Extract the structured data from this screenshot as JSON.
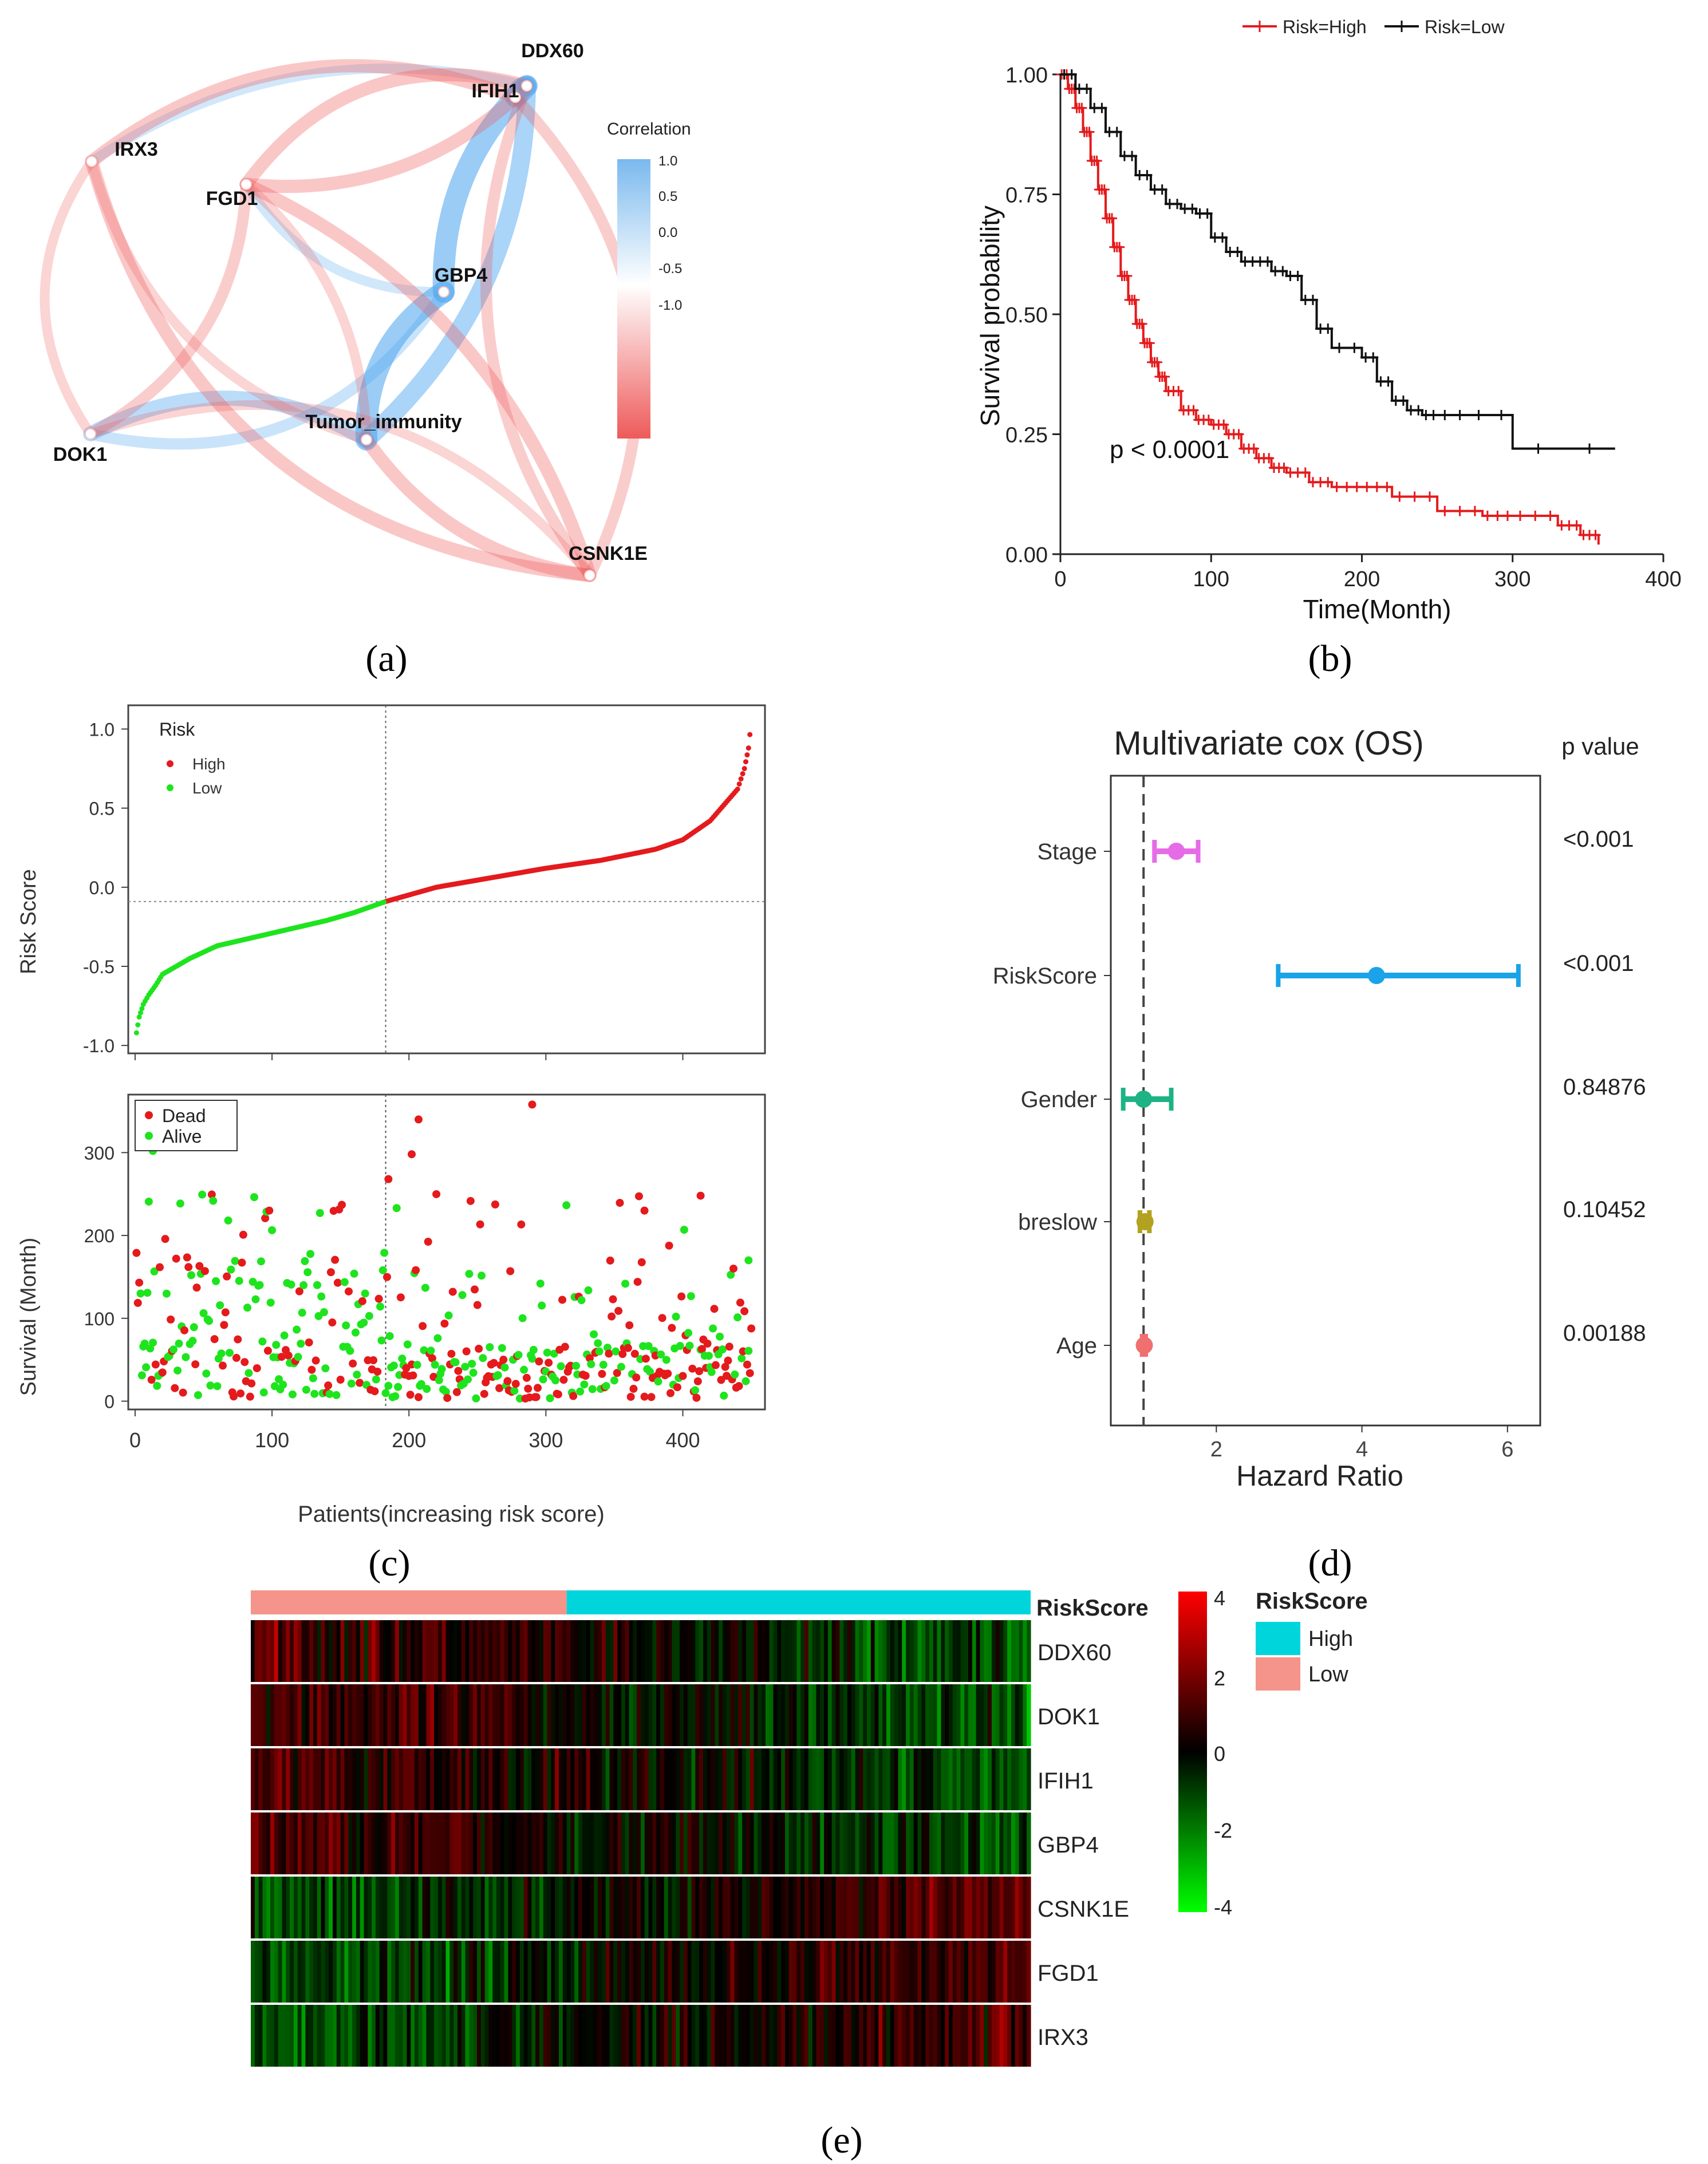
{
  "panel_labels": {
    "a": "(a)",
    "b": "(b)",
    "c": "(c)",
    "d": "(d)",
    "e": "(e)"
  },
  "chart_data": [
    {
      "panel": "a",
      "type": "network",
      "legend_title": "Correlation",
      "colorbar_ticks": [
        "1.0",
        "0.5",
        "0.0",
        "-0.5",
        "-1.0"
      ],
      "colors": {
        "positive": "#4da6f0",
        "negative": "#f05a5a"
      },
      "nodes": [
        "DDX60",
        "IFIH1",
        "IRX3",
        "FGD1",
        "GBP4",
        "Tumor_immunity",
        "DOK1",
        "CSNK1E"
      ],
      "edges": [
        {
          "source": "GBP4",
          "target": "DDX60",
          "sign": "positive",
          "strength": 1.0
        },
        {
          "source": "GBP4",
          "target": "Tumor_immunity",
          "sign": "positive",
          "strength": 1.0
        },
        {
          "source": "IFIH1",
          "target": "DDX60",
          "sign": "positive",
          "strength": 0.9
        },
        {
          "source": "Tumor_immunity",
          "target": "DDX60",
          "sign": "positive",
          "strength": 0.8
        },
        {
          "source": "DOK1",
          "target": "Tumor_immunity",
          "sign": "positive",
          "strength": 0.6
        },
        {
          "source": "DOK1",
          "target": "GBP4",
          "sign": "positive",
          "strength": 0.4
        },
        {
          "source": "IRX3",
          "target": "DDX60",
          "sign": "positive",
          "strength": 0.3
        },
        {
          "source": "FGD1",
          "target": "GBP4",
          "sign": "positive",
          "strength": 0.3
        },
        {
          "source": "FGD1",
          "target": "DDX60",
          "sign": "negative",
          "strength": 0.5
        },
        {
          "source": "FGD1",
          "target": "IFIH1",
          "sign": "negative",
          "strength": 0.5
        },
        {
          "source": "IRX3",
          "target": "IFIH1",
          "sign": "negative",
          "strength": 0.5
        },
        {
          "source": "IRX3",
          "target": "CSNK1E",
          "sign": "negative",
          "strength": 0.5
        },
        {
          "source": "FGD1",
          "target": "CSNK1E",
          "sign": "negative",
          "strength": 0.5
        },
        {
          "source": "DOK1",
          "target": "FGD1",
          "sign": "negative",
          "strength": 0.4
        },
        {
          "source": "DOK1",
          "target": "IRX3",
          "sign": "negative",
          "strength": 0.3
        },
        {
          "source": "Tumor_immunity",
          "target": "CSNK1E",
          "sign": "negative",
          "strength": 0.5
        },
        {
          "source": "CSNK1E",
          "target": "DDX60",
          "sign": "negative",
          "strength": 0.4
        },
        {
          "source": "CSNK1E",
          "target": "IFIH1",
          "sign": "negative",
          "strength": 0.4
        },
        {
          "source": "FGD1",
          "target": "Tumor_immunity",
          "sign": "negative",
          "strength": 0.3
        },
        {
          "source": "IRX3",
          "target": "Tumor_immunity",
          "sign": "negative",
          "strength": 0.3
        },
        {
          "source": "DOK1",
          "target": "CSNK1E",
          "sign": "negative",
          "strength": 0.3
        }
      ]
    },
    {
      "panel": "b",
      "type": "line",
      "subtype": "kaplan-meier",
      "xlabel": "Time(Month)",
      "ylabel": "Survival probability",
      "xlim": [
        0,
        400
      ],
      "ylim": [
        0,
        1
      ],
      "xticks": [
        0,
        100,
        200,
        300,
        400
      ],
      "yticks": [
        0.0,
        0.25,
        0.5,
        0.75,
        1.0
      ],
      "ytick_labels": [
        "0.00",
        "0.25",
        "0.50",
        "0.75",
        "1.00"
      ],
      "legend_position": "top",
      "annotation": "p < 0.0001",
      "series": [
        {
          "name": "Risk=High",
          "color": "#e41a1c",
          "x": [
            0,
            5,
            10,
            15,
            20,
            25,
            30,
            35,
            40,
            45,
            50,
            55,
            60,
            65,
            70,
            80,
            90,
            100,
            110,
            120,
            130,
            140,
            150,
            165,
            180,
            200,
            220,
            250,
            280,
            300,
            330,
            345,
            357
          ],
          "y": [
            1.0,
            0.97,
            0.93,
            0.88,
            0.82,
            0.76,
            0.7,
            0.64,
            0.58,
            0.53,
            0.48,
            0.44,
            0.4,
            0.37,
            0.34,
            0.3,
            0.28,
            0.27,
            0.25,
            0.22,
            0.2,
            0.18,
            0.17,
            0.15,
            0.14,
            0.14,
            0.12,
            0.09,
            0.08,
            0.08,
            0.06,
            0.04,
            0.02
          ]
        },
        {
          "name": "Risk=Low",
          "color": "#111111",
          "x": [
            0,
            10,
            20,
            30,
            40,
            50,
            60,
            70,
            80,
            90,
            100,
            110,
            120,
            130,
            140,
            150,
            160,
            170,
            180,
            200,
            210,
            220,
            230,
            240,
            250,
            270,
            300,
            368
          ],
          "y": [
            1.0,
            0.97,
            0.93,
            0.88,
            0.83,
            0.79,
            0.76,
            0.73,
            0.72,
            0.71,
            0.66,
            0.63,
            0.61,
            0.61,
            0.59,
            0.58,
            0.53,
            0.47,
            0.43,
            0.41,
            0.36,
            0.32,
            0.3,
            0.29,
            0.29,
            0.29,
            0.22,
            0.22
          ]
        }
      ]
    },
    {
      "panel": "c-top",
      "type": "scatter",
      "ylabel": "Risk Score",
      "xlim": [
        -5,
        460
      ],
      "ylim": [
        -1.05,
        1.15
      ],
      "yticks": [
        -1.0,
        -0.5,
        0.0,
        0.5,
        1.0
      ],
      "ytick_labels": [
        "-1.0",
        "-0.5",
        "0.0",
        "0.5",
        "1.0"
      ],
      "cutoff_x": 183,
      "cutoff_y": -0.09,
      "legend_title": "Risk",
      "legend_position": "top-left",
      "series": [
        {
          "name": "High",
          "color": "#e41a1c",
          "x": [
            183,
            220,
            260,
            300,
            340,
            380,
            400,
            420,
            430,
            440,
            445,
            448,
            450
          ],
          "y": [
            -0.09,
            0.0,
            0.06,
            0.12,
            0.17,
            0.24,
            0.3,
            0.42,
            0.52,
            0.62,
            0.75,
            0.88,
            1.05
          ]
        },
        {
          "name": "Low",
          "color": "#1ee41e",
          "x": [
            1,
            3,
            6,
            10,
            15,
            20,
            30,
            40,
            50,
            60,
            80,
            100,
            120,
            140,
            160,
            183
          ],
          "y": [
            -0.92,
            -0.82,
            -0.74,
            -0.68,
            -0.62,
            -0.55,
            -0.5,
            -0.45,
            -0.41,
            -0.37,
            -0.33,
            -0.29,
            -0.25,
            -0.21,
            -0.16,
            -0.09
          ]
        }
      ]
    },
    {
      "panel": "c-bottom",
      "type": "scatter",
      "xlabel": "Patients(increasing risk score)",
      "ylabel": "Survival (Month)",
      "xlim": [
        -5,
        460
      ],
      "ylim": [
        -10,
        370
      ],
      "xticks": [
        0,
        100,
        200,
        300,
        400
      ],
      "yticks": [
        0,
        100,
        200,
        300
      ],
      "cutoff_x": 183,
      "legend_position": "top-left",
      "series": [
        {
          "name": "Dead",
          "color": "#e41a1c"
        },
        {
          "name": "Alive",
          "color": "#1ee41e"
        }
      ]
    },
    {
      "panel": "d",
      "type": "forest",
      "title": "Multivariate cox (OS)",
      "xlabel": "Hazard Ratio",
      "pvalue_header": "p value",
      "xlim": [
        0.55,
        6.45
      ],
      "xticks": [
        2,
        4,
        6
      ],
      "reference_x": 1,
      "variables": [
        {
          "name": "Stage",
          "hr": 1.45,
          "lower": 1.15,
          "upper": 1.75,
          "p": "<0.001",
          "color": "#e66be6"
        },
        {
          "name": "RiskScore",
          "hr": 4.2,
          "lower": 2.85,
          "upper": 6.15,
          "p": "<0.001",
          "color": "#1aa3e8"
        },
        {
          "name": "Gender",
          "hr": 1.0,
          "lower": 0.72,
          "upper": 1.38,
          "p": "0.84876",
          "color": "#1db385"
        },
        {
          "name": "breslow",
          "hr": 1.02,
          "lower": 0.95,
          "upper": 1.08,
          "p": "0.10452",
          "color": "#b3a21f"
        },
        {
          "name": "Age",
          "hr": 1.01,
          "lower": 0.98,
          "upper": 1.03,
          "p": "0.00188",
          "color": "#f07070"
        }
      ]
    },
    {
      "panel": "e",
      "type": "heatmap",
      "rows": [
        "DDX60",
        "DOK1",
        "IFIH1",
        "GBP4",
        "CSNK1E",
        "FGD1",
        "IRX3"
      ],
      "annotation_label": "RiskScore",
      "annotation_groups": [
        {
          "name": "Low",
          "color": "#f4948a",
          "fraction": 0.405
        },
        {
          "name": "High",
          "color": "#00d5dc",
          "fraction": 0.595
        }
      ],
      "legend_title": "RiskScore",
      "legend_items": [
        "High",
        "Low"
      ],
      "color_scale": {
        "min": -4,
        "max": 4,
        "low_color": "#00ff00",
        "mid_color": "#000000",
        "high_color": "#ff0000"
      },
      "colorbar_ticks": [
        4,
        2,
        0,
        -2,
        -4
      ]
    }
  ]
}
